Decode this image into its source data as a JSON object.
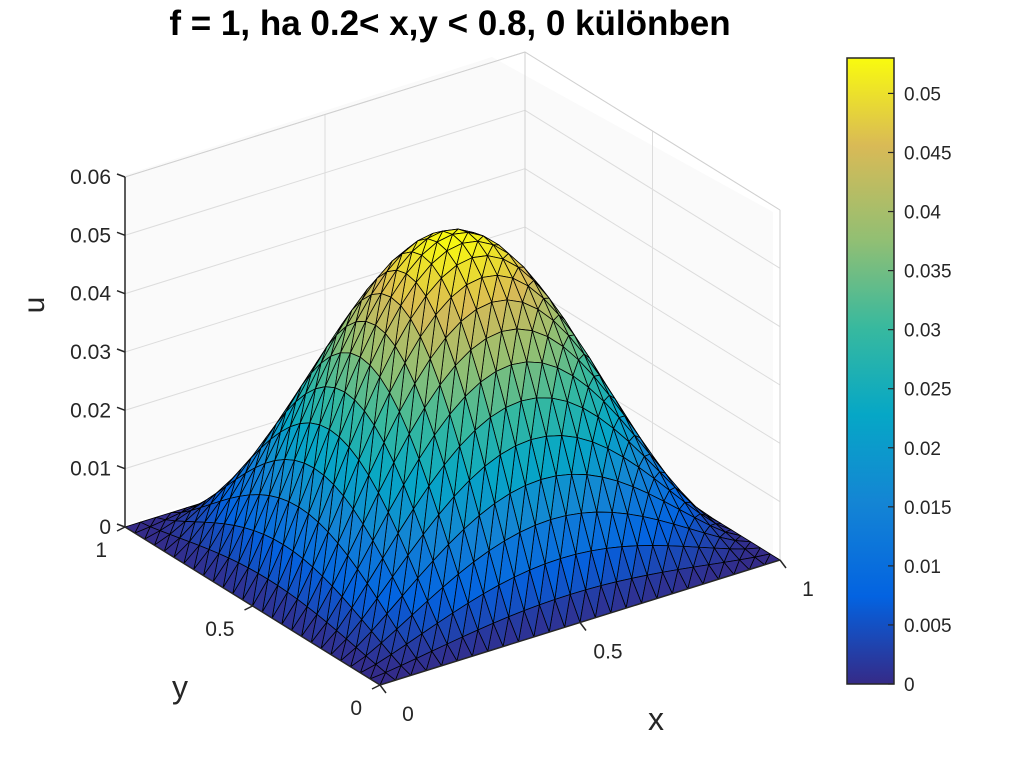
{
  "chart_data": {
    "type": "surface",
    "title": "f = 1, ha 0.2< x,y < 0.8, 0 különben",
    "xlabel": "x",
    "ylabel": "y",
    "zlabel": "u",
    "xlim": [
      0,
      1
    ],
    "ylim": [
      0,
      1
    ],
    "zlim": [
      0,
      0.06
    ],
    "x_ticks": [
      "0",
      "0.5",
      "1"
    ],
    "y_ticks": [
      "0",
      "0.5",
      "1"
    ],
    "z_ticks": [
      "0",
      "0.01",
      "0.02",
      "0.03",
      "0.04",
      "0.05",
      "0.06"
    ],
    "peak": {
      "x": 0.5,
      "y": 0.5,
      "u": 0.053
    },
    "colorbar": {
      "range": [
        0,
        0.053
      ],
      "ticks": [
        "0",
        "0.005",
        "0.01",
        "0.015",
        "0.02",
        "0.025",
        "0.03",
        "0.035",
        "0.04",
        "0.045",
        "0.05"
      ],
      "colormap": "parula"
    },
    "grid": true,
    "mesh": "triangular"
  }
}
